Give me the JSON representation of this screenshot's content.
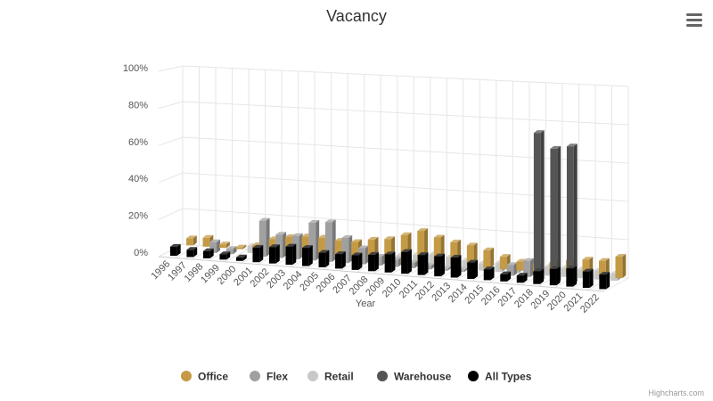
{
  "menu": {
    "icon": "hamburger-menu-icon"
  },
  "credits": "Highcharts.com",
  "chart_data": {
    "type": "bar",
    "title": "Vacancy",
    "xlabel": "Year",
    "ylabel": "",
    "ylim": [
      0,
      100
    ],
    "y_ticks": [
      "0%",
      "20%",
      "40%",
      "60%",
      "80%",
      "100%"
    ],
    "grid": true,
    "legend_position": "bottom",
    "categories": [
      "1996",
      "1997",
      "1998",
      "1999",
      "2000",
      "2001",
      "2002",
      "2003",
      "2004",
      "2005",
      "2006",
      "2007",
      "2008",
      "2009",
      "2010",
      "2011",
      "2012",
      "2013",
      "2014",
      "2015",
      "2016",
      "2017",
      "2018",
      "2019",
      "2020",
      "2021",
      "2022"
    ],
    "series": [
      {
        "name": "Office",
        "color": "#c49a45",
        "values": [
          4,
          5,
          2,
          1,
          3,
          7,
          9,
          10,
          10,
          9,
          9,
          11,
          12,
          15,
          18,
          15,
          13,
          12,
          10,
          7,
          5,
          4,
          6,
          8,
          9,
          9,
          12
        ]
      },
      {
        "name": "Flex",
        "color": "#a0a0a0",
        "values": [
          0,
          0,
          6,
          3,
          0,
          20,
          13,
          13,
          21,
          22,
          14,
          9,
          5,
          4,
          3,
          2,
          1,
          1,
          0,
          0,
          6,
          9,
          0,
          0,
          0,
          0,
          0
        ]
      },
      {
        "name": "Retail",
        "color": "#c8c8c8",
        "values": [
          0,
          0,
          0,
          0,
          4,
          8,
          10,
          9,
          3,
          3,
          4,
          5,
          3,
          5,
          6,
          7,
          6,
          5,
          4,
          5,
          4,
          4,
          5,
          5,
          5,
          5,
          4
        ]
      },
      {
        "name": "Warehouse",
        "color": "#555555",
        "values": [
          0,
          0,
          0,
          0,
          0,
          0,
          0,
          0,
          0,
          0,
          0,
          0,
          0,
          0,
          0,
          0,
          0,
          0,
          0,
          0,
          0,
          0,
          82,
          74,
          76,
          0,
          0
        ]
      },
      {
        "name": "All Types",
        "color": "#000000",
        "values": [
          5,
          4,
          4,
          3,
          2,
          8,
          9,
          10,
          10,
          8,
          8,
          8,
          9,
          10,
          12,
          11,
          11,
          11,
          9,
          6,
          4,
          4,
          7,
          9,
          10,
          9,
          8
        ]
      }
    ]
  }
}
